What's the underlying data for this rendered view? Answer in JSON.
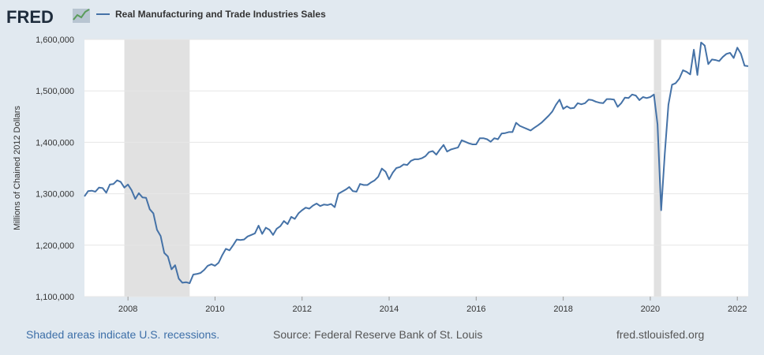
{
  "header": {
    "logo_text": "FRED",
    "logo_icon": "line-chart-icon"
  },
  "footer": {
    "note": "Shaded areas indicate U.S. recessions.",
    "source": "Source: Federal Reserve Bank of St. Louis",
    "url": "fred.stlouisfed.org"
  },
  "colors": {
    "background": "#e1e9f0",
    "plot_background": "#ffffff",
    "series_line": "#4572a7",
    "recession_shade": "#e1e1e1",
    "grid": "#e6e6e6"
  },
  "chart_data": {
    "type": "line",
    "title": "",
    "xlabel": "",
    "ylabel": "Millions of Chained 2012 Dollars",
    "ylim": [
      1100000,
      1600000
    ],
    "xlim": [
      2007.0,
      2022.25
    ],
    "y_ticks": [
      1100000,
      1200000,
      1300000,
      1400000,
      1500000,
      1600000
    ],
    "y_tick_labels": [
      "1,100,000",
      "1,200,000",
      "1,300,000",
      "1,400,000",
      "1,500,000",
      "1,600,000"
    ],
    "x_ticks": [
      2008,
      2010,
      2012,
      2014,
      2016,
      2018,
      2020,
      2022
    ],
    "x_tick_labels": [
      "2008",
      "2010",
      "2012",
      "2014",
      "2016",
      "2018",
      "2020",
      "2022"
    ],
    "grid": true,
    "legend": "top-left",
    "recessions": [
      {
        "start": 2007.917,
        "end": 2009.417
      },
      {
        "start": 2020.083,
        "end": 2020.25
      }
    ],
    "series": [
      {
        "name": "Real Manufacturing and Trade Industries Sales",
        "x": [
          2007.0,
          2007.083,
          2007.167,
          2007.25,
          2007.333,
          2007.417,
          2007.5,
          2007.583,
          2007.667,
          2007.75,
          2007.833,
          2007.917,
          2008.0,
          2008.083,
          2008.167,
          2008.25,
          2008.333,
          2008.417,
          2008.5,
          2008.583,
          2008.667,
          2008.75,
          2008.833,
          2008.917,
          2009.0,
          2009.083,
          2009.167,
          2009.25,
          2009.333,
          2009.417,
          2009.5,
          2009.583,
          2009.667,
          2009.75,
          2009.833,
          2009.917,
          2010.0,
          2010.083,
          2010.167,
          2010.25,
          2010.333,
          2010.417,
          2010.5,
          2010.583,
          2010.667,
          2010.75,
          2010.833,
          2010.917,
          2011.0,
          2011.083,
          2011.167,
          2011.25,
          2011.333,
          2011.417,
          2011.5,
          2011.583,
          2011.667,
          2011.75,
          2011.833,
          2011.917,
          2012.0,
          2012.083,
          2012.167,
          2012.25,
          2012.333,
          2012.417,
          2012.5,
          2012.583,
          2012.667,
          2012.75,
          2012.833,
          2012.917,
          2013.0,
          2013.083,
          2013.167,
          2013.25,
          2013.333,
          2013.417,
          2013.5,
          2013.583,
          2013.667,
          2013.75,
          2013.833,
          2013.917,
          2014.0,
          2014.083,
          2014.167,
          2014.25,
          2014.333,
          2014.417,
          2014.5,
          2014.583,
          2014.667,
          2014.75,
          2014.833,
          2014.917,
          2015.0,
          2015.083,
          2015.167,
          2015.25,
          2015.333,
          2015.417,
          2015.5,
          2015.583,
          2015.667,
          2015.75,
          2015.833,
          2015.917,
          2016.0,
          2016.083,
          2016.167,
          2016.25,
          2016.333,
          2016.417,
          2016.5,
          2016.583,
          2016.667,
          2016.75,
          2016.833,
          2016.917,
          2017.0,
          2017.083,
          2017.167,
          2017.25,
          2017.333,
          2017.417,
          2017.5,
          2017.583,
          2017.667,
          2017.75,
          2017.833,
          2017.917,
          2018.0,
          2018.083,
          2018.167,
          2018.25,
          2018.333,
          2018.417,
          2018.5,
          2018.583,
          2018.667,
          2018.75,
          2018.833,
          2018.917,
          2019.0,
          2019.083,
          2019.167,
          2019.25,
          2019.333,
          2019.417,
          2019.5,
          2019.583,
          2019.667,
          2019.75,
          2019.833,
          2019.917,
          2020.0,
          2020.083,
          2020.167,
          2020.25,
          2020.333,
          2020.417,
          2020.5,
          2020.583,
          2020.667,
          2020.75,
          2020.833,
          2020.917,
          2021.0,
          2021.083,
          2021.167,
          2021.25,
          2021.333,
          2021.417,
          2021.5,
          2021.583,
          2021.667,
          2021.75,
          2021.833,
          2021.917,
          2022.0,
          2022.083,
          2022.167,
          2022.25
        ],
        "values": [
          1295000,
          1305000,
          1306000,
          1304000,
          1312000,
          1311000,
          1302000,
          1318000,
          1319000,
          1326000,
          1323000,
          1312000,
          1318000,
          1307000,
          1290000,
          1301000,
          1293000,
          1292000,
          1270000,
          1262000,
          1230000,
          1218000,
          1185000,
          1178000,
          1153000,
          1161000,
          1135000,
          1127000,
          1128000,
          1126000,
          1143000,
          1144000,
          1146000,
          1152000,
          1160000,
          1163000,
          1160000,
          1166000,
          1181000,
          1193000,
          1190000,
          1200000,
          1211000,
          1210000,
          1211000,
          1217000,
          1220000,
          1223000,
          1238000,
          1222000,
          1234000,
          1230000,
          1220000,
          1232000,
          1237000,
          1247000,
          1241000,
          1255000,
          1251000,
          1262000,
          1268000,
          1273000,
          1271000,
          1277000,
          1281000,
          1276000,
          1279000,
          1278000,
          1280000,
          1274000,
          1300000,
          1304000,
          1308000,
          1313000,
          1305000,
          1304000,
          1319000,
          1317000,
          1317000,
          1322000,
          1326000,
          1333000,
          1349000,
          1343000,
          1328000,
          1341000,
          1350000,
          1352000,
          1357000,
          1356000,
          1364000,
          1367000,
          1367000,
          1369000,
          1373000,
          1381000,
          1383000,
          1376000,
          1386000,
          1395000,
          1382000,
          1386000,
          1388000,
          1390000,
          1404000,
          1401000,
          1398000,
          1396000,
          1396000,
          1408000,
          1408000,
          1406000,
          1401000,
          1408000,
          1406000,
          1417000,
          1418000,
          1420000,
          1420000,
          1438000,
          1432000,
          1429000,
          1426000,
          1423000,
          1428000,
          1433000,
          1438000,
          1445000,
          1452000,
          1460000,
          1473000,
          1483000,
          1465000,
          1470000,
          1466000,
          1467000,
          1476000,
          1474000,
          1476000,
          1483000,
          1482000,
          1479000,
          1477000,
          1476000,
          1484000,
          1484000,
          1483000,
          1469000,
          1476000,
          1487000,
          1486000,
          1493000,
          1491000,
          1482000,
          1488000,
          1486000,
          1488000,
          1493000,
          1435000,
          1268000,
          1378000,
          1473000,
          1512000,
          1515000,
          1524000,
          1540000,
          1537000,
          1532000,
          1580000,
          1531000,
          1594000,
          1588000,
          1552000,
          1561000,
          1560000,
          1558000,
          1566000,
          1572000,
          1574000,
          1564000,
          1584000,
          1572000,
          1549000,
          1548000
        ]
      }
    ]
  }
}
